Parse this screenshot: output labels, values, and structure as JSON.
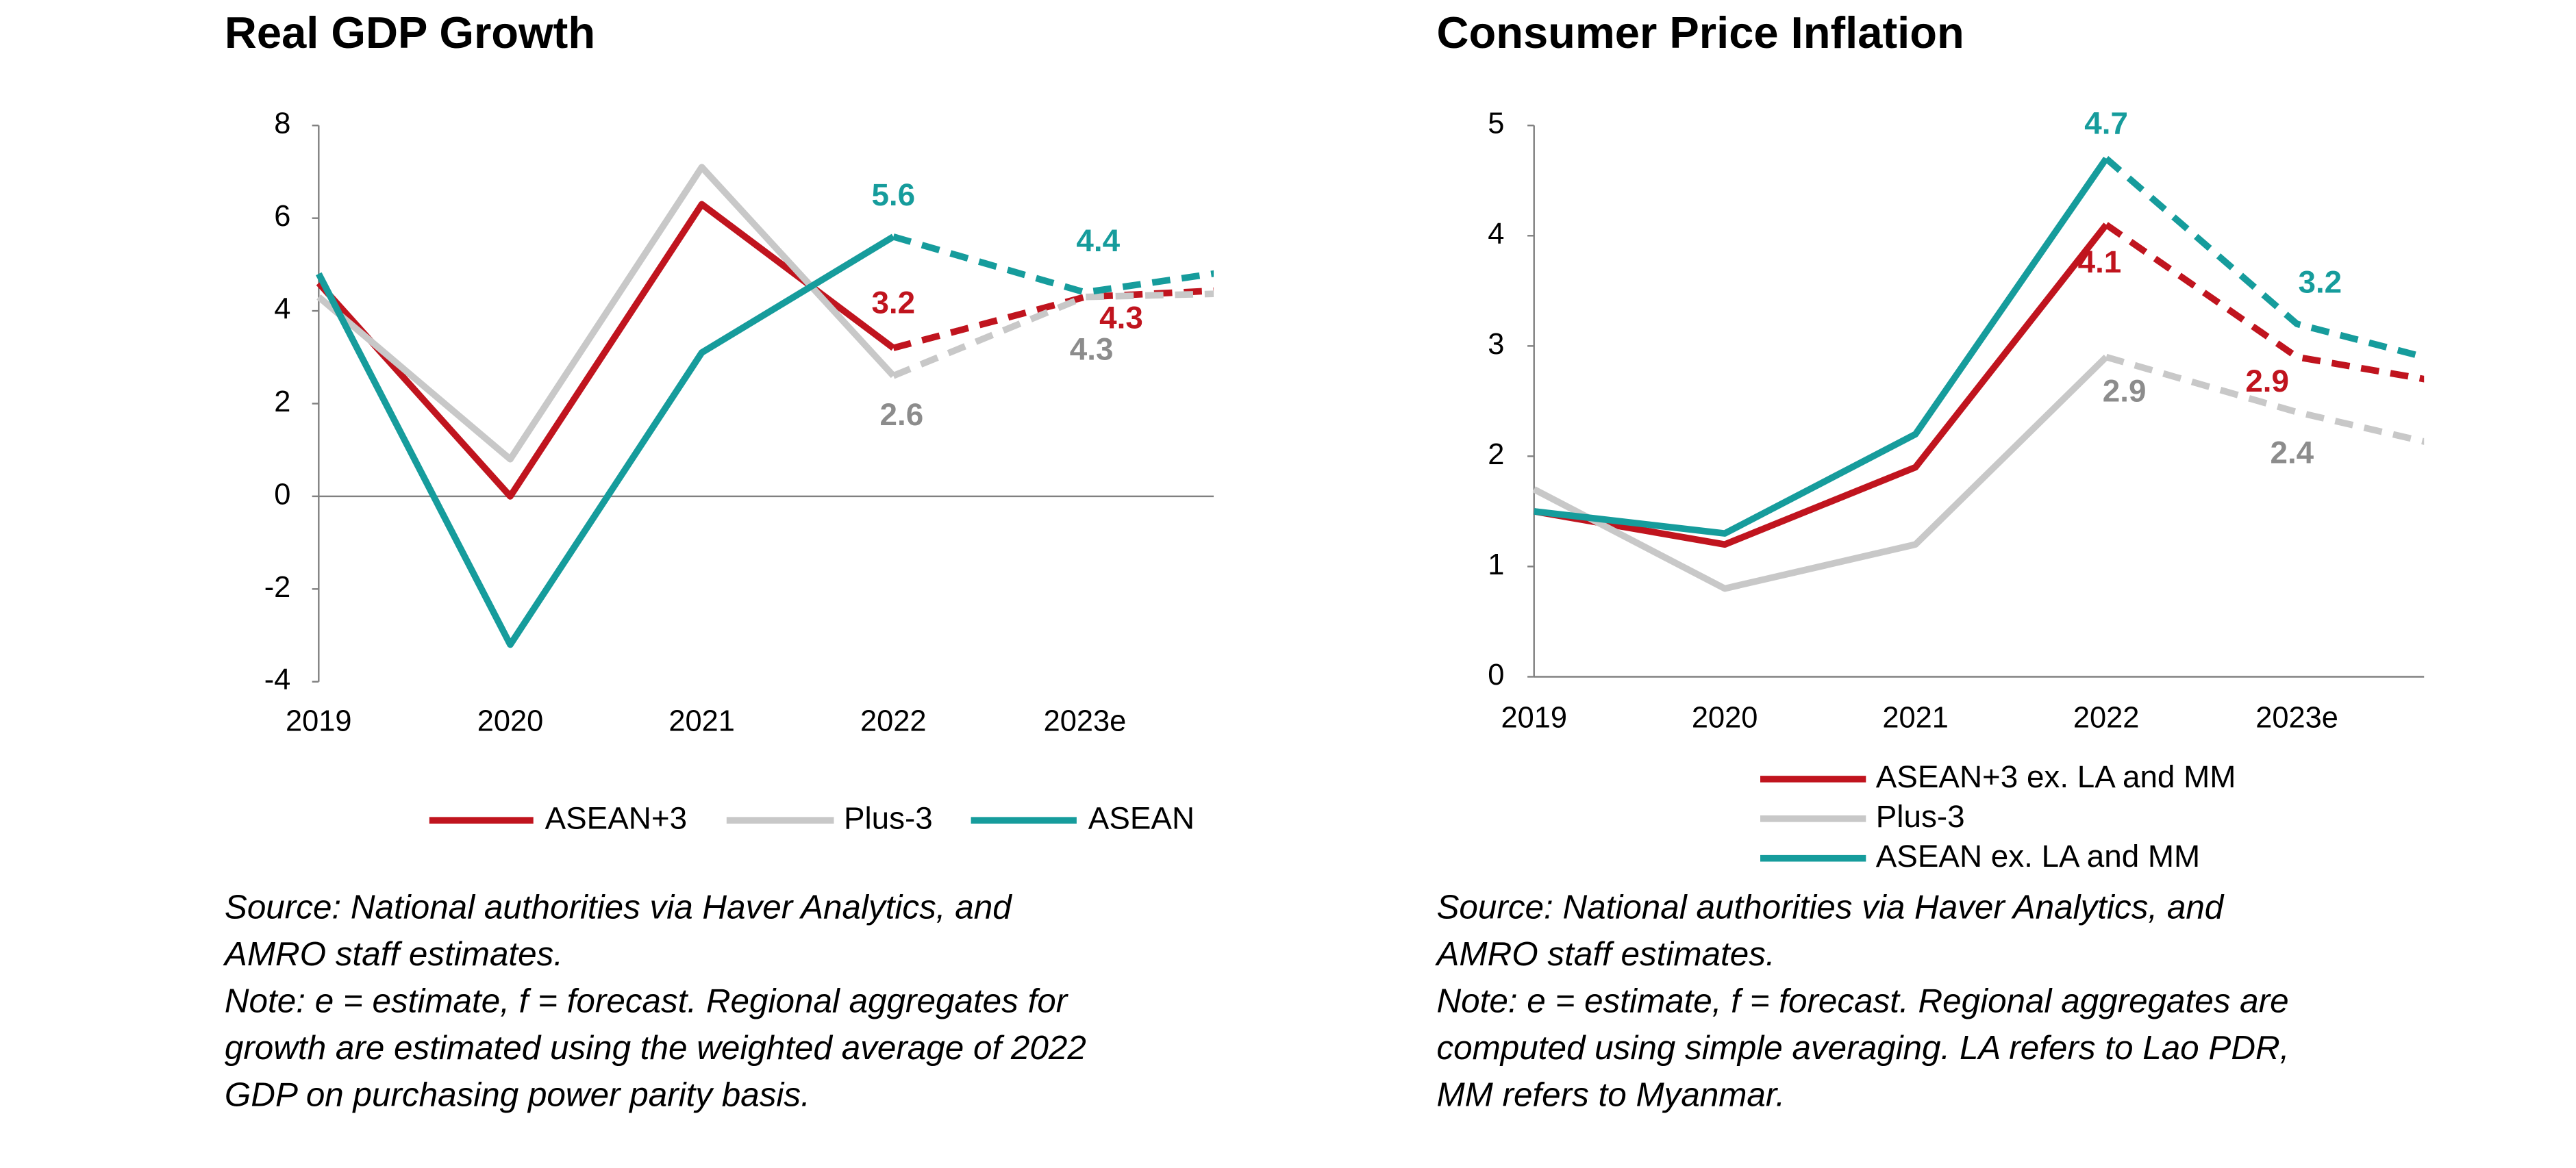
{
  "chart_data": [
    {
      "type": "line",
      "title": "Real GDP Growth",
      "categories": [
        "2019",
        "2020",
        "2021",
        "2022",
        "2023e",
        null
      ],
      "ylim": [
        -4,
        8
      ],
      "yticks": [
        -4,
        -2,
        0,
        2,
        4,
        6,
        8
      ],
      "dash_from": 3,
      "legend": "bottom",
      "series": [
        {
          "name": "ASEAN+3",
          "color": "#c0141e",
          "label_color": "#c0141e",
          "values": [
            4.6,
            0.0,
            6.3,
            3.2,
            4.3,
            4.5
          ],
          "value_labels": [
            null,
            null,
            null,
            "3.2",
            "4.3",
            null
          ]
        },
        {
          "name": "Plus-3",
          "color": "#c8c8c8",
          "label_color": "#8c8c8c",
          "values": [
            4.3,
            0.8,
            7.1,
            2.6,
            4.3,
            4.4
          ],
          "value_labels": [
            null,
            null,
            null,
            "2.6",
            "4.3",
            null
          ]
        },
        {
          "name": "ASEAN",
          "color": "#169c9c",
          "label_color": "#169c9c",
          "values": [
            4.8,
            -3.2,
            3.1,
            5.6,
            4.4,
            5.0
          ],
          "value_labels": [
            null,
            null,
            null,
            "5.6",
            "4.4",
            null
          ]
        }
      ],
      "notes": [
        "Source: National authorities via Haver Analytics, and",
        "AMRO staff estimates.",
        "Note: e = estimate, f = forecast. Regional aggregates for",
        "growth are estimated using the weighted average of 2022",
        "GDP on purchasing power parity basis."
      ]
    },
    {
      "type": "line",
      "title": "Consumer Price Inflation",
      "categories": [
        "2019",
        "2020",
        "2021",
        "2022",
        "2023e",
        null
      ],
      "ylim": [
        0,
        5
      ],
      "yticks": [
        0,
        1,
        2,
        3,
        4,
        5
      ],
      "dash_from": 3,
      "legend": "bottom",
      "series": [
        {
          "name": "ASEAN+3 ex. LA and MM",
          "color": "#c0141e",
          "label_color": "#c0141e",
          "values": [
            1.5,
            1.2,
            1.9,
            4.1,
            2.9,
            2.6
          ],
          "value_labels": [
            null,
            null,
            null,
            "4.1",
            "2.9",
            null
          ]
        },
        {
          "name": "Plus-3",
          "color": "#c8c8c8",
          "label_color": "#8c8c8c",
          "values": [
            1.7,
            0.8,
            1.2,
            2.9,
            2.4,
            2.0
          ],
          "value_labels": [
            null,
            null,
            null,
            "2.9",
            "2.4",
            null
          ]
        },
        {
          "name": "ASEAN ex. LA and MM",
          "color": "#169c9c",
          "label_color": "#169c9c",
          "values": [
            1.5,
            1.3,
            2.2,
            4.7,
            3.2,
            2.75
          ],
          "value_labels": [
            null,
            null,
            null,
            "4.7",
            "3.2",
            null
          ]
        }
      ],
      "notes": [
        "Source: National authorities via Haver Analytics, and",
        "AMRO staff estimates.",
        "Note: e = estimate, f = forecast. Regional aggregates are",
        "computed using simple averaging. LA refers to Lao PDR,",
        "MM refers to Myanmar."
      ]
    }
  ]
}
